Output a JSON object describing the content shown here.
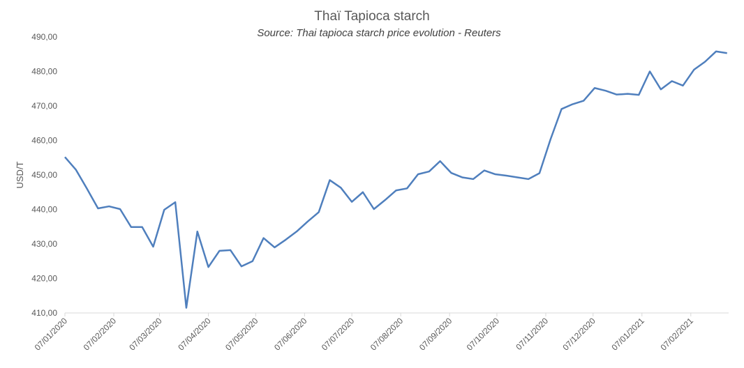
{
  "chart_data": {
    "type": "line",
    "title": "Thaï Tapioca starch",
    "subtitle": "Source: Thai tapioca starch price evolution - Reuters",
    "y_label": "USD/T",
    "x": [
      "07/01/2020",
      "14/01/2020",
      "21/01/2020",
      "28/01/2020",
      "04/02/2020",
      "11/02/2020",
      "18/02/2020",
      "25/02/2020",
      "03/03/2020",
      "10/03/2020",
      "17/03/2020",
      "24/03/2020",
      "31/03/2020",
      "07/04/2020",
      "14/04/2020",
      "21/04/2020",
      "28/04/2020",
      "05/05/2020",
      "12/05/2020",
      "19/05/2020",
      "26/05/2020",
      "02/06/2020",
      "09/06/2020",
      "16/06/2020",
      "23/06/2020",
      "30/06/2020",
      "07/07/2020",
      "14/07/2020",
      "21/07/2020",
      "28/07/2020",
      "04/08/2020",
      "11/08/2020",
      "18/08/2020",
      "25/08/2020",
      "01/09/2020",
      "08/09/2020",
      "15/09/2020",
      "22/09/2020",
      "29/09/2020",
      "06/10/2020",
      "13/10/2020",
      "20/10/2020",
      "27/10/2020",
      "03/11/2020",
      "10/11/2020",
      "17/11/2020",
      "24/11/2020",
      "01/12/2020",
      "08/12/2020",
      "15/12/2020",
      "22/12/2020",
      "29/12/2020",
      "05/01/2021",
      "12/01/2021",
      "19/01/2021",
      "26/01/2021",
      "02/02/2021",
      "09/02/2021",
      "16/02/2021",
      "23/02/2021",
      "02/03/2021"
    ],
    "series": [
      {
        "name": "Thaï Tapioca starch",
        "color": "#4f7fbd",
        "values": [
          455.2,
          451.5,
          446,
          440.3,
          440.9,
          440.1,
          434.9,
          434.9,
          429.2,
          439.9,
          442.1,
          411.5,
          433.6,
          423.3,
          428,
          428.2,
          423.5,
          425,
          431.7,
          429,
          431.2,
          433.6,
          436.5,
          439.2,
          448.5,
          446.3,
          442.2,
          445,
          440.1,
          442.7,
          445.5,
          446.1,
          450.2,
          451,
          454,
          450.6,
          449.3,
          448.8,
          451.3,
          450.2,
          449.8,
          449.3,
          448.8,
          450.5,
          460.3,
          469.1,
          470.5,
          471.5,
          475.2,
          474.4,
          473.3,
          473.5,
          473.2,
          480,
          474.8,
          477.2,
          475.9,
          480.5,
          482.8,
          485.8,
          485.3
        ]
      }
    ],
    "xlim": [
      "07/01/2020",
      "03/03/2021"
    ],
    "xticks": [
      "07/01/2020",
      "07/02/2020",
      "07/03/2020",
      "07/04/2020",
      "07/05/2020",
      "07/06/2020",
      "07/07/2020",
      "07/08/2020",
      "07/09/2020",
      "07/10/2020",
      "07/11/2020",
      "07/12/2020",
      "07/01/2021",
      "07/02/2021"
    ],
    "ylim": [
      410,
      490
    ],
    "yticks": [
      {
        "value": 410,
        "label": "410,00"
      },
      {
        "value": 420,
        "label": "420,00"
      },
      {
        "value": 430,
        "label": "430,00"
      },
      {
        "value": 440,
        "label": "440,00"
      },
      {
        "value": 450,
        "label": "450,00"
      },
      {
        "value": 460,
        "label": "460,00"
      },
      {
        "value": 470,
        "label": "470,00"
      },
      {
        "value": 480,
        "label": "480,00"
      },
      {
        "value": 490,
        "label": "490,00"
      }
    ],
    "grid": false
  }
}
